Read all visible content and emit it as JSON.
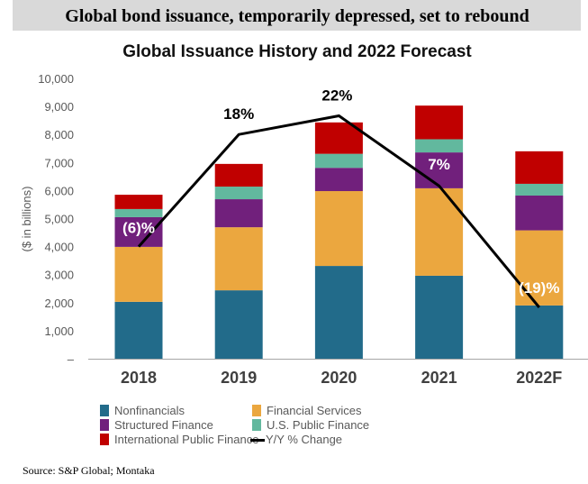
{
  "header": {
    "title": "Global bond issuance, temporarily depressed, set to rebound"
  },
  "source": "Source: S&P Global; Montaka",
  "chart_data": {
    "type": "bar",
    "stacked": true,
    "title": "Global Issuance History and 2022 Forecast",
    "xlabel": "",
    "ylabel": "($ in billions)",
    "ylim": [
      0,
      10000
    ],
    "yticks": [
      0,
      1000,
      2000,
      3000,
      4000,
      5000,
      6000,
      7000,
      8000,
      9000,
      10000
    ],
    "ytick_labels": [
      "–",
      "1,000",
      "2,000",
      "3,000",
      "4,000",
      "5,000",
      "6,000",
      "7,000",
      "8,000",
      "9,000",
      "10,000"
    ],
    "grid": false,
    "legend_position": "bottom",
    "categories": [
      "2018",
      "2019",
      "2020",
      "2021",
      "2022F"
    ],
    "series": [
      {
        "name": "Nonfinancials",
        "color": "#226b8a",
        "values": [
          2030,
          2440,
          3310,
          2960,
          1900
        ]
      },
      {
        "name": "Financial Services",
        "color": "#eba73f",
        "values": [
          1960,
          2250,
          2670,
          3120,
          2680
        ]
      },
      {
        "name": "Structured Finance",
        "color": "#71207c",
        "values": [
          1060,
          1000,
          830,
          1280,
          1240
        ]
      },
      {
        "name": "U.S. Public Finance",
        "color": "#62b89e",
        "values": [
          290,
          450,
          500,
          470,
          420
        ]
      },
      {
        "name": "International Public Finance",
        "color": "#c00000",
        "values": [
          510,
          810,
          1120,
          1200,
          1160
        ]
      }
    ],
    "line_series": {
      "name": "Y/Y % Change",
      "color": "#000000",
      "axis": "secondary (hidden)",
      "y2lim": [
        -30,
        30
      ],
      "values": [
        -6,
        18,
        22,
        7,
        -19
      ],
      "labels": [
        "(6)%",
        "18%",
        "22%",
        "7%",
        "(19)%"
      ],
      "label_colors": [
        "#ffffff",
        "#000000",
        "#000000",
        "#ffffff",
        "#ffffff"
      ]
    },
    "legend_order": [
      0,
      1,
      2,
      3,
      4,
      "line"
    ]
  }
}
